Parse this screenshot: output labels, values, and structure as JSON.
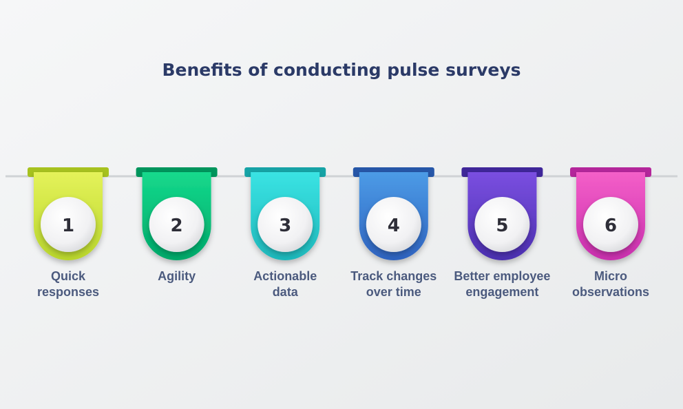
{
  "header": {
    "title": "Benefits of conducting pulse surveys"
  },
  "items": [
    {
      "number": "1",
      "label": [
        "Quick",
        "responses"
      ]
    },
    {
      "number": "2",
      "label": [
        "Agility"
      ]
    },
    {
      "number": "3",
      "label": [
        "Actionable",
        "data"
      ]
    },
    {
      "number": "4",
      "label": [
        "Track changes",
        "over time"
      ]
    },
    {
      "number": "5",
      "label": [
        "Better employee",
        "engagement"
      ]
    },
    {
      "number": "6",
      "label": [
        "Micro",
        "observations"
      ]
    }
  ]
}
